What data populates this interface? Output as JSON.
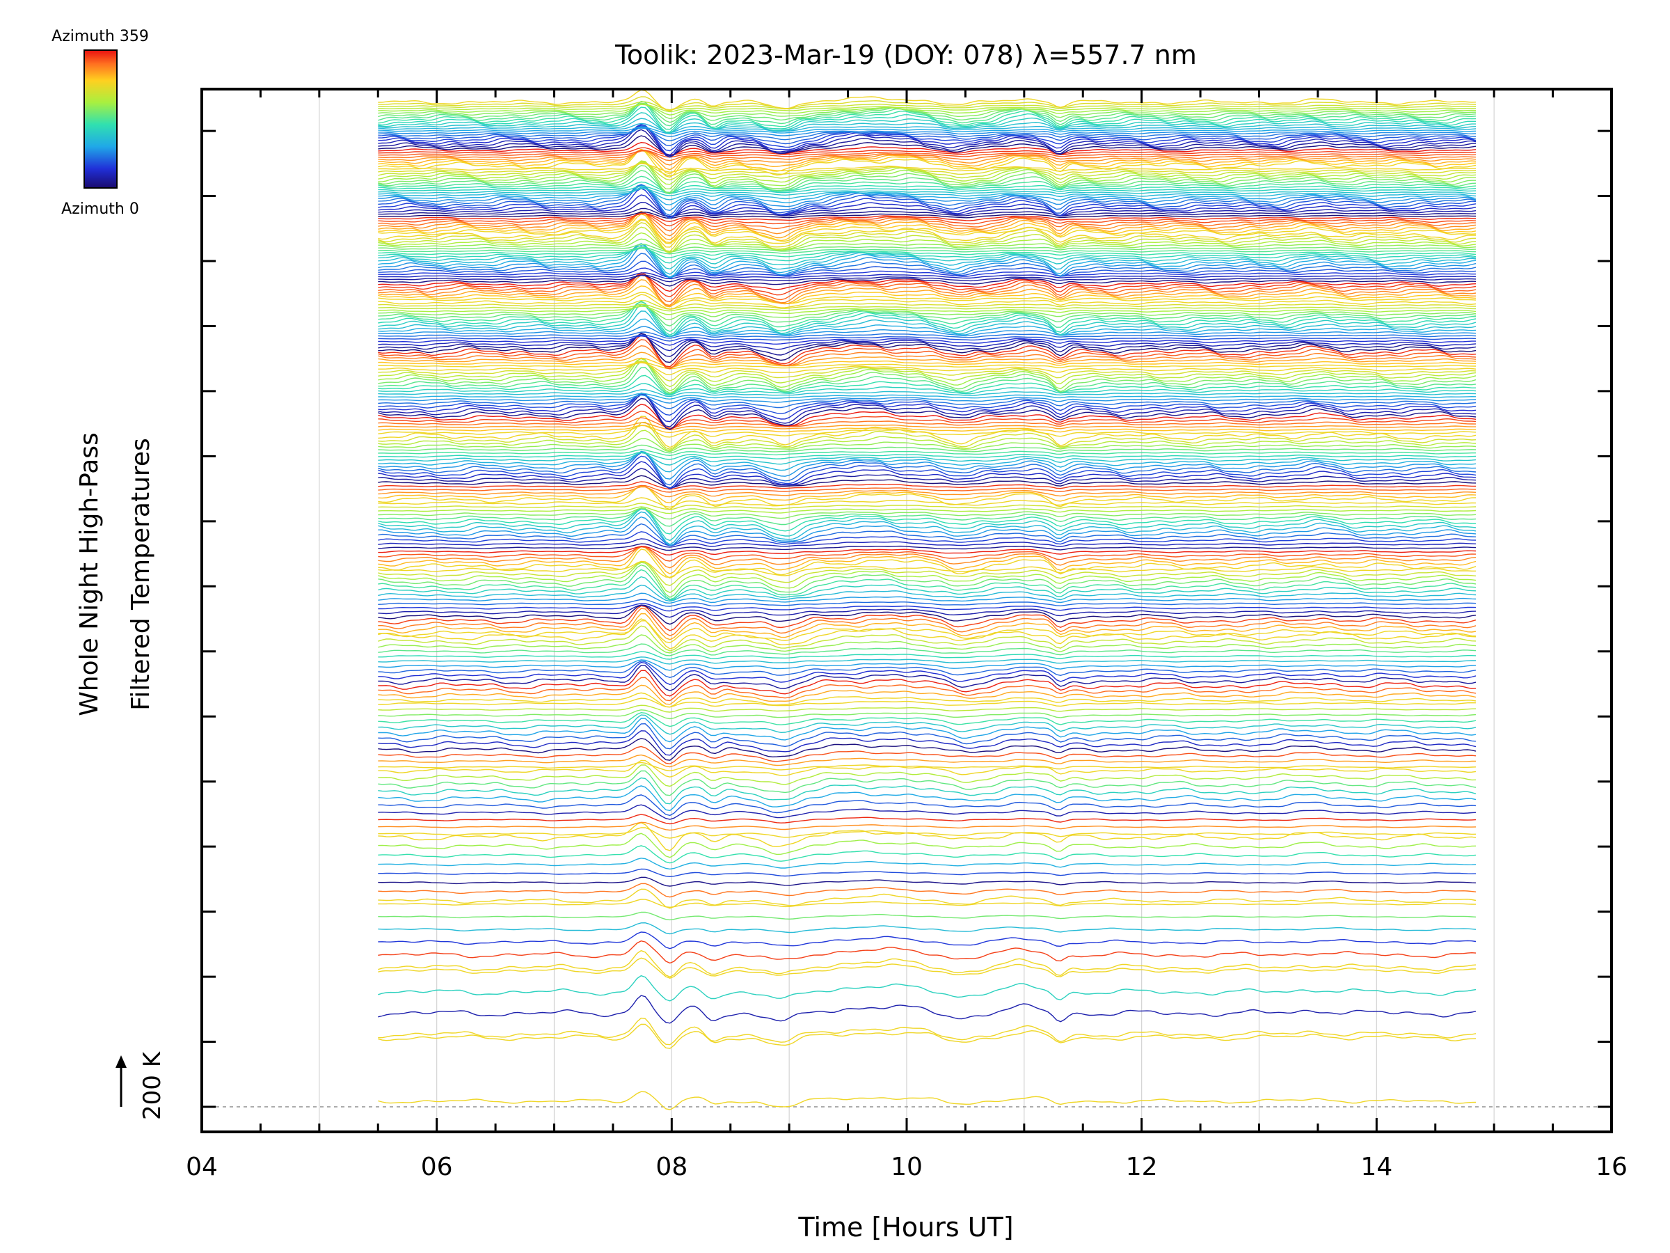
{
  "chart_data": {
    "type": "line",
    "title": "Toolik: 2023-Mar-19 (DOY: 078) λ=557.7 nm",
    "xlabel": "Time [Hours UT]",
    "ylabel_line1": "Whole Night High-Pass",
    "ylabel_line2": "Filtered Temperatures",
    "xlim": [
      4,
      16
    ],
    "x_ticks": [
      "04",
      "06",
      "08",
      "10",
      "12",
      "14",
      "16"
    ],
    "x_range_data": [
      5.5,
      14.85
    ],
    "grid_x": [
      5,
      6,
      7,
      8,
      9,
      10,
      11,
      12,
      13,
      14,
      15
    ],
    "y_major_tick_count": 16,
    "scale_bar_label": "200 K",
    "colorbar": {
      "top_label": "Azimuth 359",
      "bottom_label": "Azimuth 0",
      "colormap": "rainbow"
    },
    "stacked_groups": 15,
    "traces_per_group": [
      2,
      4,
      6,
      8,
      10,
      12,
      14,
      16,
      18,
      20,
      22,
      24,
      26,
      28,
      30
    ],
    "dominant_events": [
      {
        "time": 7.75,
        "kind": "sharp peak then dip"
      },
      {
        "time": 8.0,
        "kind": "dip"
      },
      {
        "time": 8.95,
        "kind": "dip"
      },
      {
        "time": 9.75,
        "kind": "broad hump"
      },
      {
        "time": 10.5,
        "kind": "dip"
      },
      {
        "time": 11.0,
        "kind": "hump"
      },
      {
        "time": 11.3,
        "kind": "sharp dip"
      },
      {
        "time": 13.5,
        "kind": "small hump"
      }
    ],
    "colors": {
      "axis": "#000000",
      "grid": "#d3d3d3",
      "baseline": "#808080"
    }
  }
}
